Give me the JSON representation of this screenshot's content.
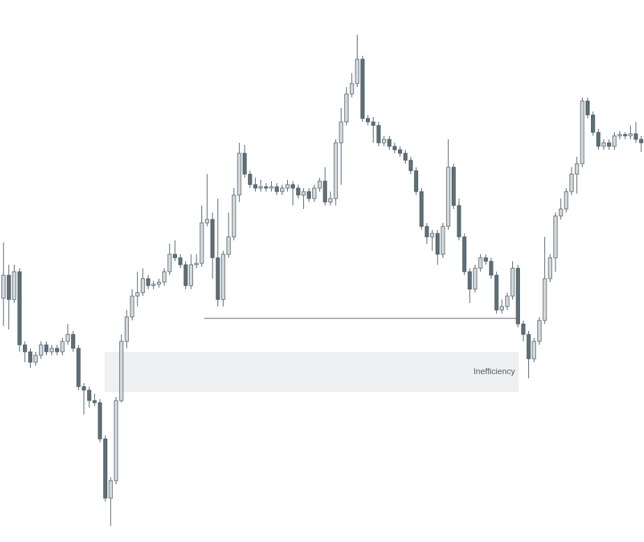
{
  "chart_data": {
    "type": "candlestick",
    "ylim": [
      0,
      77.8
    ],
    "up_color": "#d3d8db",
    "down_color": "#5f6f78",
    "edge_color": "#4a5a63",
    "open": [
      35.0,
      38.3,
      34.8,
      38.8,
      28.3,
      27.3,
      25.8,
      26.8,
      28.3,
      27.3,
      27.8,
      27.3,
      28.8,
      29.8,
      27.8,
      22.3,
      21.8,
      20.3,
      20.0,
      14.8,
      6.3,
      8.8,
      20.3,
      28.8,
      32.3,
      35.3,
      35.8,
      37.8,
      36.8,
      37.0,
      37.3,
      38.8,
      41.3,
      40.8,
      39.8,
      36.8,
      39.8,
      40.0,
      45.8,
      46.3,
      40.8,
      34.8,
      41.3,
      43.8,
      49.8,
      55.8,
      52.8,
      51.3,
      50.8,
      51.0,
      50.8,
      51.0,
      50.3,
      50.8,
      51.3,
      50.8,
      49.8,
      50.3,
      49.3,
      50.8,
      51.8,
      48.8,
      49.3,
      57.3,
      60.3,
      64.3,
      65.8,
      69.3,
      60.8,
      60.3,
      59.8,
      57.3,
      57.8,
      56.8,
      56.3,
      55.8,
      54.8,
      53.3,
      50.3,
      45.3,
      43.8,
      44.3,
      41.3,
      45.3,
      53.8,
      48.3,
      43.8,
      38.8,
      36.3,
      39.3,
      40.8,
      40.3,
      38.3,
      33.3,
      33.8,
      35.3,
      39.3,
      31.3,
      29.8,
      26.3,
      28.8,
      31.8,
      37.8,
      40.8,
      46.8,
      47.8,
      50.3,
      52.8,
      54.3,
      63.3,
      61.3,
      58.8,
      56.8,
      57.3,
      56.8,
      58.3,
      58.5,
      58.3,
      58.6,
      57.8
    ],
    "high": [
      43.0,
      39.8,
      39.8,
      39.3,
      28.8,
      27.8,
      27.3,
      28.8,
      28.8,
      28.3,
      28.3,
      29.3,
      31.3,
      30.3,
      28.3,
      22.8,
      22.3,
      21.3,
      20.5,
      15.3,
      9.3,
      20.8,
      29.8,
      33.3,
      36.3,
      38.8,
      39.3,
      38.3,
      37.5,
      37.8,
      39.3,
      42.8,
      43.3,
      41.3,
      40.3,
      41.3,
      41.3,
      48.3,
      52.8,
      47.3,
      49.3,
      41.8,
      47.3,
      50.8,
      57.3,
      57.0,
      53.3,
      52.3,
      52.0,
      51.5,
      51.8,
      51.5,
      51.3,
      52.0,
      51.8,
      51.3,
      50.8,
      50.8,
      51.3,
      52.3,
      53.8,
      50.3,
      57.8,
      62.3,
      65.3,
      67.3,
      72.8,
      69.8,
      61.3,
      61.0,
      60.3,
      58.3,
      58.3,
      57.3,
      56.8,
      56.3,
      55.3,
      53.8,
      50.8,
      45.8,
      44.8,
      44.8,
      45.8,
      57.8,
      54.3,
      49.3,
      44.3,
      39.3,
      39.8,
      41.3,
      41.3,
      40.8,
      38.8,
      34.8,
      35.8,
      40.3,
      39.8,
      31.8,
      30.3,
      29.3,
      32.3,
      43.8,
      41.3,
      47.3,
      49.3,
      50.8,
      53.8,
      55.3,
      63.8,
      63.8,
      61.8,
      59.3,
      57.8,
      57.8,
      58.8,
      59.0,
      58.8,
      59.8,
      60.3,
      58.3
    ],
    "low": [
      31.0,
      30.5,
      34.3,
      27.3,
      25.8,
      25.0,
      25.3,
      26.3,
      26.8,
      26.8,
      26.8,
      26.8,
      28.3,
      27.3,
      21.8,
      18.3,
      19.3,
      19.5,
      14.3,
      5.8,
      2.3,
      8.3,
      20.0,
      27.8,
      31.8,
      33.8,
      35.3,
      36.3,
      36.3,
      36.5,
      36.8,
      38.3,
      40.3,
      39.3,
      36.3,
      36.3,
      39.3,
      39.5,
      45.3,
      37.8,
      33.8,
      33.8,
      40.8,
      43.3,
      48.8,
      52.3,
      50.8,
      50.3,
      50.3,
      50.3,
      50.3,
      49.8,
      49.8,
      50.3,
      48.3,
      49.3,
      47.8,
      48.8,
      48.8,
      50.3,
      48.3,
      48.3,
      48.3,
      51.3,
      59.8,
      63.8,
      65.3,
      60.3,
      59.8,
      57.3,
      56.8,
      56.8,
      56.3,
      55.8,
      55.3,
      54.3,
      52.8,
      49.8,
      44.8,
      42.8,
      41.8,
      39.8,
      40.8,
      44.8,
      47.8,
      43.3,
      38.3,
      34.3,
      35.8,
      38.8,
      39.8,
      37.8,
      32.8,
      32.8,
      33.3,
      34.8,
      30.8,
      28.8,
      23.5,
      25.8,
      28.3,
      31.3,
      37.3,
      38.8,
      46.3,
      47.3,
      49.8,
      50.0,
      53.8,
      60.8,
      58.3,
      56.3,
      56.3,
      56.3,
      56.3,
      57.8,
      57.8,
      57.8,
      57.3,
      56.0
    ],
    "close": [
      38.3,
      34.8,
      38.8,
      28.3,
      27.3,
      25.8,
      26.8,
      28.3,
      27.3,
      27.8,
      27.3,
      28.8,
      29.8,
      27.8,
      22.3,
      21.8,
      20.3,
      20.0,
      14.8,
      6.3,
      8.8,
      20.3,
      28.8,
      32.3,
      35.3,
      35.8,
      37.8,
      36.8,
      37.0,
      37.3,
      38.8,
      41.3,
      40.8,
      39.8,
      36.8,
      39.8,
      40.0,
      45.8,
      46.3,
      40.8,
      34.8,
      41.3,
      43.8,
      49.8,
      55.8,
      52.8,
      51.3,
      50.8,
      51.0,
      50.8,
      51.0,
      50.3,
      50.8,
      51.3,
      50.8,
      49.8,
      50.3,
      49.3,
      50.8,
      51.8,
      48.8,
      49.3,
      57.3,
      60.3,
      64.3,
      65.8,
      69.3,
      60.8,
      60.3,
      59.8,
      57.3,
      57.8,
      56.8,
      56.3,
      55.8,
      54.8,
      53.3,
      50.3,
      45.3,
      43.8,
      44.3,
      41.3,
      45.3,
      53.8,
      48.3,
      43.8,
      38.8,
      36.3,
      39.3,
      40.8,
      40.3,
      38.3,
      33.3,
      33.8,
      35.3,
      39.3,
      31.3,
      29.8,
      26.3,
      28.8,
      31.8,
      37.8,
      40.8,
      46.8,
      47.8,
      50.3,
      52.8,
      54.3,
      63.3,
      61.3,
      58.8,
      56.8,
      57.3,
      56.8,
      58.3,
      58.5,
      58.3,
      58.6,
      57.8,
      57.3
    ],
    "level": {
      "value": 32.1,
      "color": "#555c60"
    },
    "zone": {
      "label": "Inefficiency",
      "top": 27.3,
      "bottom": 21.5,
      "color": "#eef0f1"
    }
  }
}
